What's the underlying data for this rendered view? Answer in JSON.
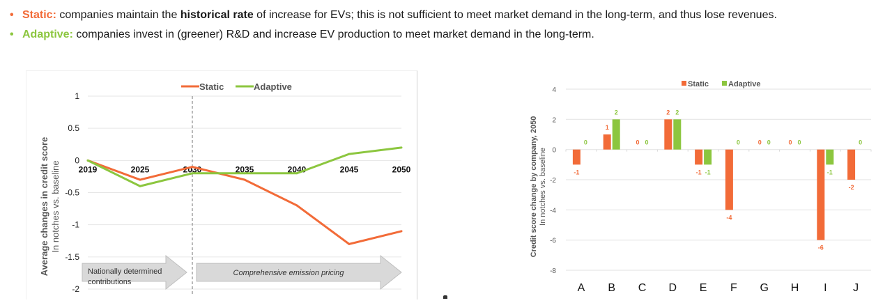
{
  "bullets": [
    {
      "keyword": "Static:",
      "color": "#f26b38",
      "text_before": " companies maintain the ",
      "bold": "historical rate",
      "text_after": " of increase for EVs; this is not sufficient to meet market demand in the long-term, and thus lose revenues."
    },
    {
      "keyword": "Adaptive:",
      "color": "#8cc63f",
      "text_before": " companies invest in (greener) R&D and increase EV production to meet market demand in the long-term.",
      "bold": "",
      "text_after": ""
    }
  ],
  "bullet_glyph": "•",
  "colors": {
    "static": "#f26b38",
    "adaptive": "#8cc63f",
    "grid": "#e6e6e6",
    "arrow_fill": "#d9d9d9",
    "arrow_stroke": "#bfbfbf"
  },
  "chart_data": [
    {
      "type": "line",
      "title": "",
      "xlabel": "",
      "ylabel": "Average changes in credit score",
      "ylabel_sub": "In notches vs. baseline",
      "x": [
        "2019",
        "2025",
        "2030",
        "2035",
        "2040",
        "2045",
        "2050"
      ],
      "series": [
        {
          "name": "Static",
          "color": "#f26b38",
          "values": [
            0,
            -0.3,
            -0.1,
            -0.3,
            -0.7,
            -1.3,
            -1.1
          ]
        },
        {
          "name": "Adaptive",
          "color": "#8cc63f",
          "values": [
            0,
            -0.4,
            -0.2,
            -0.2,
            -0.2,
            0.1,
            0.2
          ]
        }
      ],
      "ylim": [
        -2,
        1
      ],
      "yticks": [
        1,
        0.5,
        0,
        -0.5,
        -1,
        -1.5,
        -2
      ],
      "ytick_labels": [
        "1",
        "0.5",
        "0",
        "-0.5",
        "-1",
        "-1.5",
        "-2"
      ],
      "grid": true,
      "legend": "top-center",
      "vertical_marker": "2030",
      "annotations": [
        {
          "text_lines": [
            "Nationally determined",
            "contributions"
          ],
          "span": [
            "2019",
            "2030"
          ],
          "italic": false
        },
        {
          "text_lines": [
            "Comprehensive emission pricing"
          ],
          "span": [
            "2030",
            "2050"
          ],
          "italic": true
        }
      ]
    },
    {
      "type": "bar",
      "title": "",
      "xlabel": "",
      "ylabel": "Credit score change by company, 2050",
      "ylabel_sub": "In notches vs. baseline",
      "categories": [
        "A",
        "B",
        "C",
        "D",
        "E",
        "F",
        "G",
        "H",
        "I",
        "J"
      ],
      "series": [
        {
          "name": "Static",
          "color": "#f26b38",
          "values": [
            -1,
            1,
            0,
            2,
            -1,
            -4,
            0,
            0,
            -6,
            -2
          ]
        },
        {
          "name": "Adaptive",
          "color": "#8cc63f",
          "values": [
            0,
            2,
            0,
            2,
            -1,
            0,
            0,
            0,
            -1,
            0
          ]
        }
      ],
      "ylim": [
        -8,
        4
      ],
      "yticks": [
        4,
        2,
        0,
        -2,
        -4,
        -6,
        -8
      ],
      "ytick_labels": [
        "4",
        "2",
        "0",
        "-2",
        "-4",
        "-6",
        "-8"
      ],
      "grid": true,
      "legend": "top-center",
      "data_labels": true
    }
  ]
}
